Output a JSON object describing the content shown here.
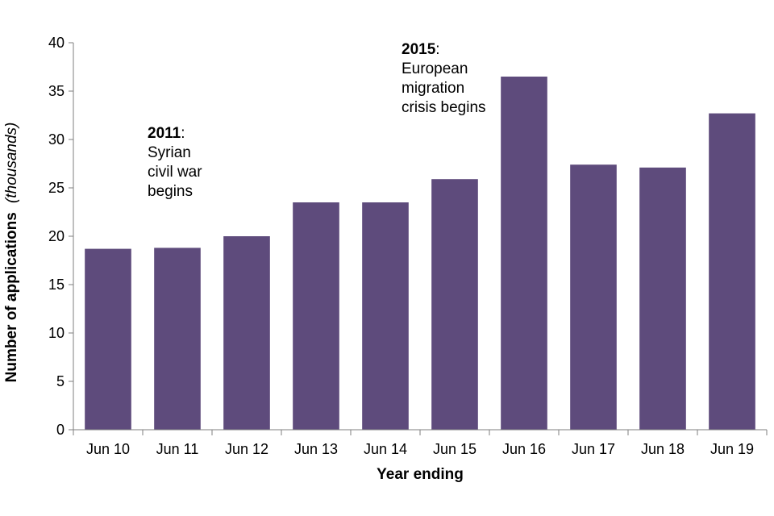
{
  "chart_data": {
    "type": "bar",
    "title": "",
    "xlabel": "Year ending",
    "ylabel": "Number of applications",
    "ylabel_unit": "(thousands)",
    "ylim": [
      0,
      40
    ],
    "yticks": [
      0,
      5,
      10,
      15,
      20,
      25,
      30,
      35,
      40
    ],
    "grid": false,
    "legend": "none",
    "categories": [
      "Jun 10",
      "Jun 11",
      "Jun 12",
      "Jun 13",
      "Jun 14",
      "Jun 15",
      "Jun 16",
      "Jun 17",
      "Jun 18",
      "Jun 19"
    ],
    "values": [
      18.7,
      18.8,
      20.0,
      23.5,
      23.5,
      25.9,
      36.5,
      27.4,
      27.1,
      32.7
    ],
    "bar_color": "#5e4b7c",
    "axis_color": "#7f7f7f",
    "annotations": [
      {
        "bold": "2011",
        "suffix": ":",
        "lines": [
          "Syrian",
          "civil war",
          "begins"
        ]
      },
      {
        "bold": "2015",
        "suffix": ":",
        "lines": [
          "European",
          "migration",
          "crisis begins"
        ]
      }
    ]
  }
}
